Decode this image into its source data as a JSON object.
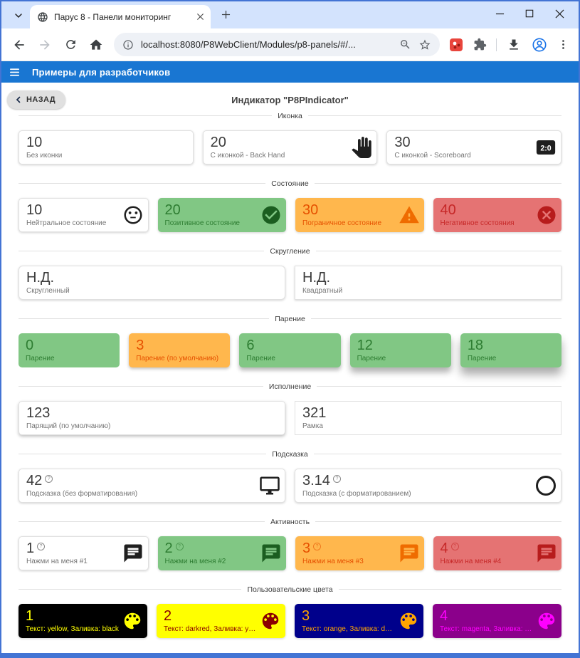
{
  "browser": {
    "tab_title": "Парус 8 - Панели мониторинг",
    "url": "localhost:8080/P8WebClient/Modules/p8-panels/#/..."
  },
  "app_header": {
    "title": "Примеры для разработчиков"
  },
  "page": {
    "back_button": "НАЗАД",
    "title": "Индикатор \"P8PIndicator\""
  },
  "colors": {
    "frame_blue": "#4374d4",
    "header_blue": "#1976d2",
    "green_bg": "#81c784",
    "orange_bg": "#ffb74d",
    "red_bg": "#e57373"
  },
  "sections": [
    {
      "title": "Иконка",
      "cards": [
        {
          "value": "10",
          "label": "Без иконки",
          "style": "plain"
        },
        {
          "value": "20",
          "label": "С иконкой - Back Hand",
          "icon": "back-hand",
          "style": "plain"
        },
        {
          "value": "30",
          "label": "С иконкой - Scoreboard",
          "icon": "scoreboard",
          "style": "plain"
        }
      ]
    },
    {
      "title": "Состояние",
      "cards": [
        {
          "value": "10",
          "label": "Нейтральное состояние",
          "icon": "sentiment-neutral",
          "style": "plain"
        },
        {
          "value": "20",
          "label": "Позитивное состояние",
          "icon": "check-circle",
          "style": "green"
        },
        {
          "value": "30",
          "label": "Пограничное состояние",
          "icon": "warning",
          "style": "orange"
        },
        {
          "value": "40",
          "label": "Негативное состояния",
          "icon": "cancel",
          "style": "red"
        }
      ]
    },
    {
      "title": "Скругление",
      "cards": [
        {
          "value": "Н.Д.",
          "label": "Скругленный",
          "style": "plain",
          "radius": 6
        },
        {
          "value": "Н.Д.",
          "label": "Квадратный",
          "style": "plain",
          "radius": 0
        }
      ]
    },
    {
      "title": "Парение",
      "cards": [
        {
          "value": "0",
          "label": "Парение",
          "style": "green",
          "shadow": "none"
        },
        {
          "value": "3",
          "label": "Парение (по умолчанию)",
          "style": "orange",
          "shadow": "sm"
        },
        {
          "value": "6",
          "label": "Парение",
          "style": "green",
          "shadow": "md"
        },
        {
          "value": "12",
          "label": "Парение",
          "style": "green",
          "shadow": "lg"
        },
        {
          "value": "18",
          "label": "Парение",
          "style": "green",
          "shadow": "xl"
        }
      ]
    },
    {
      "title": "Исполнение",
      "cards": [
        {
          "value": "123",
          "label": "Парящий (по умолчанию)",
          "style": "plain",
          "shadow": "sm"
        },
        {
          "value": "321",
          "label": "Рамка",
          "style": "plain",
          "shadow": "none",
          "radius": 0
        }
      ]
    },
    {
      "title": "Подсказка",
      "cards": [
        {
          "value": "42",
          "help": true,
          "label": "Подсказка (без форматирования)",
          "icon": "monitor",
          "style": "plain"
        },
        {
          "value": "3.14",
          "help": true,
          "label": "Подсказка (с форматированием)",
          "icon": "circle-outline",
          "style": "plain"
        }
      ]
    },
    {
      "title": "Активность",
      "cards": [
        {
          "value": "1",
          "help": true,
          "label": "Нажми на меня #1",
          "icon": "chat",
          "style": "plain",
          "clickable": true
        },
        {
          "value": "2",
          "help": true,
          "label": "Нажми на меня #2",
          "icon": "chat",
          "style": "green",
          "clickable": true
        },
        {
          "value": "3",
          "help": true,
          "label": "Нажми на меня #3",
          "icon": "chat",
          "style": "orange",
          "clickable": true
        },
        {
          "value": "4",
          "help": true,
          "label": "Нажми на меня #4",
          "icon": "chat",
          "style": "red",
          "clickable": true
        }
      ]
    },
    {
      "title": "Пользовательские цвета",
      "cards": [
        {
          "value": "1",
          "label": "Текст: yellow, Заливка: black",
          "icon": "palette",
          "style": "custom",
          "bg": "#000000",
          "fg": "#ffff00"
        },
        {
          "value": "2",
          "label": "Текст: darkred, Заливка: yellow",
          "icon": "palette",
          "style": "custom",
          "bg": "#ffff00",
          "fg": "#8b0000"
        },
        {
          "value": "3",
          "label": "Текст: orange, Заливка: darkblue",
          "icon": "palette",
          "style": "custom",
          "bg": "#00008b",
          "fg": "#ffa500"
        },
        {
          "value": "4",
          "label": "Текст: magenta, Заливка: darkmage...",
          "icon": "palette",
          "style": "custom",
          "bg": "#8b008b",
          "fg": "#ff00ff"
        }
      ]
    }
  ]
}
